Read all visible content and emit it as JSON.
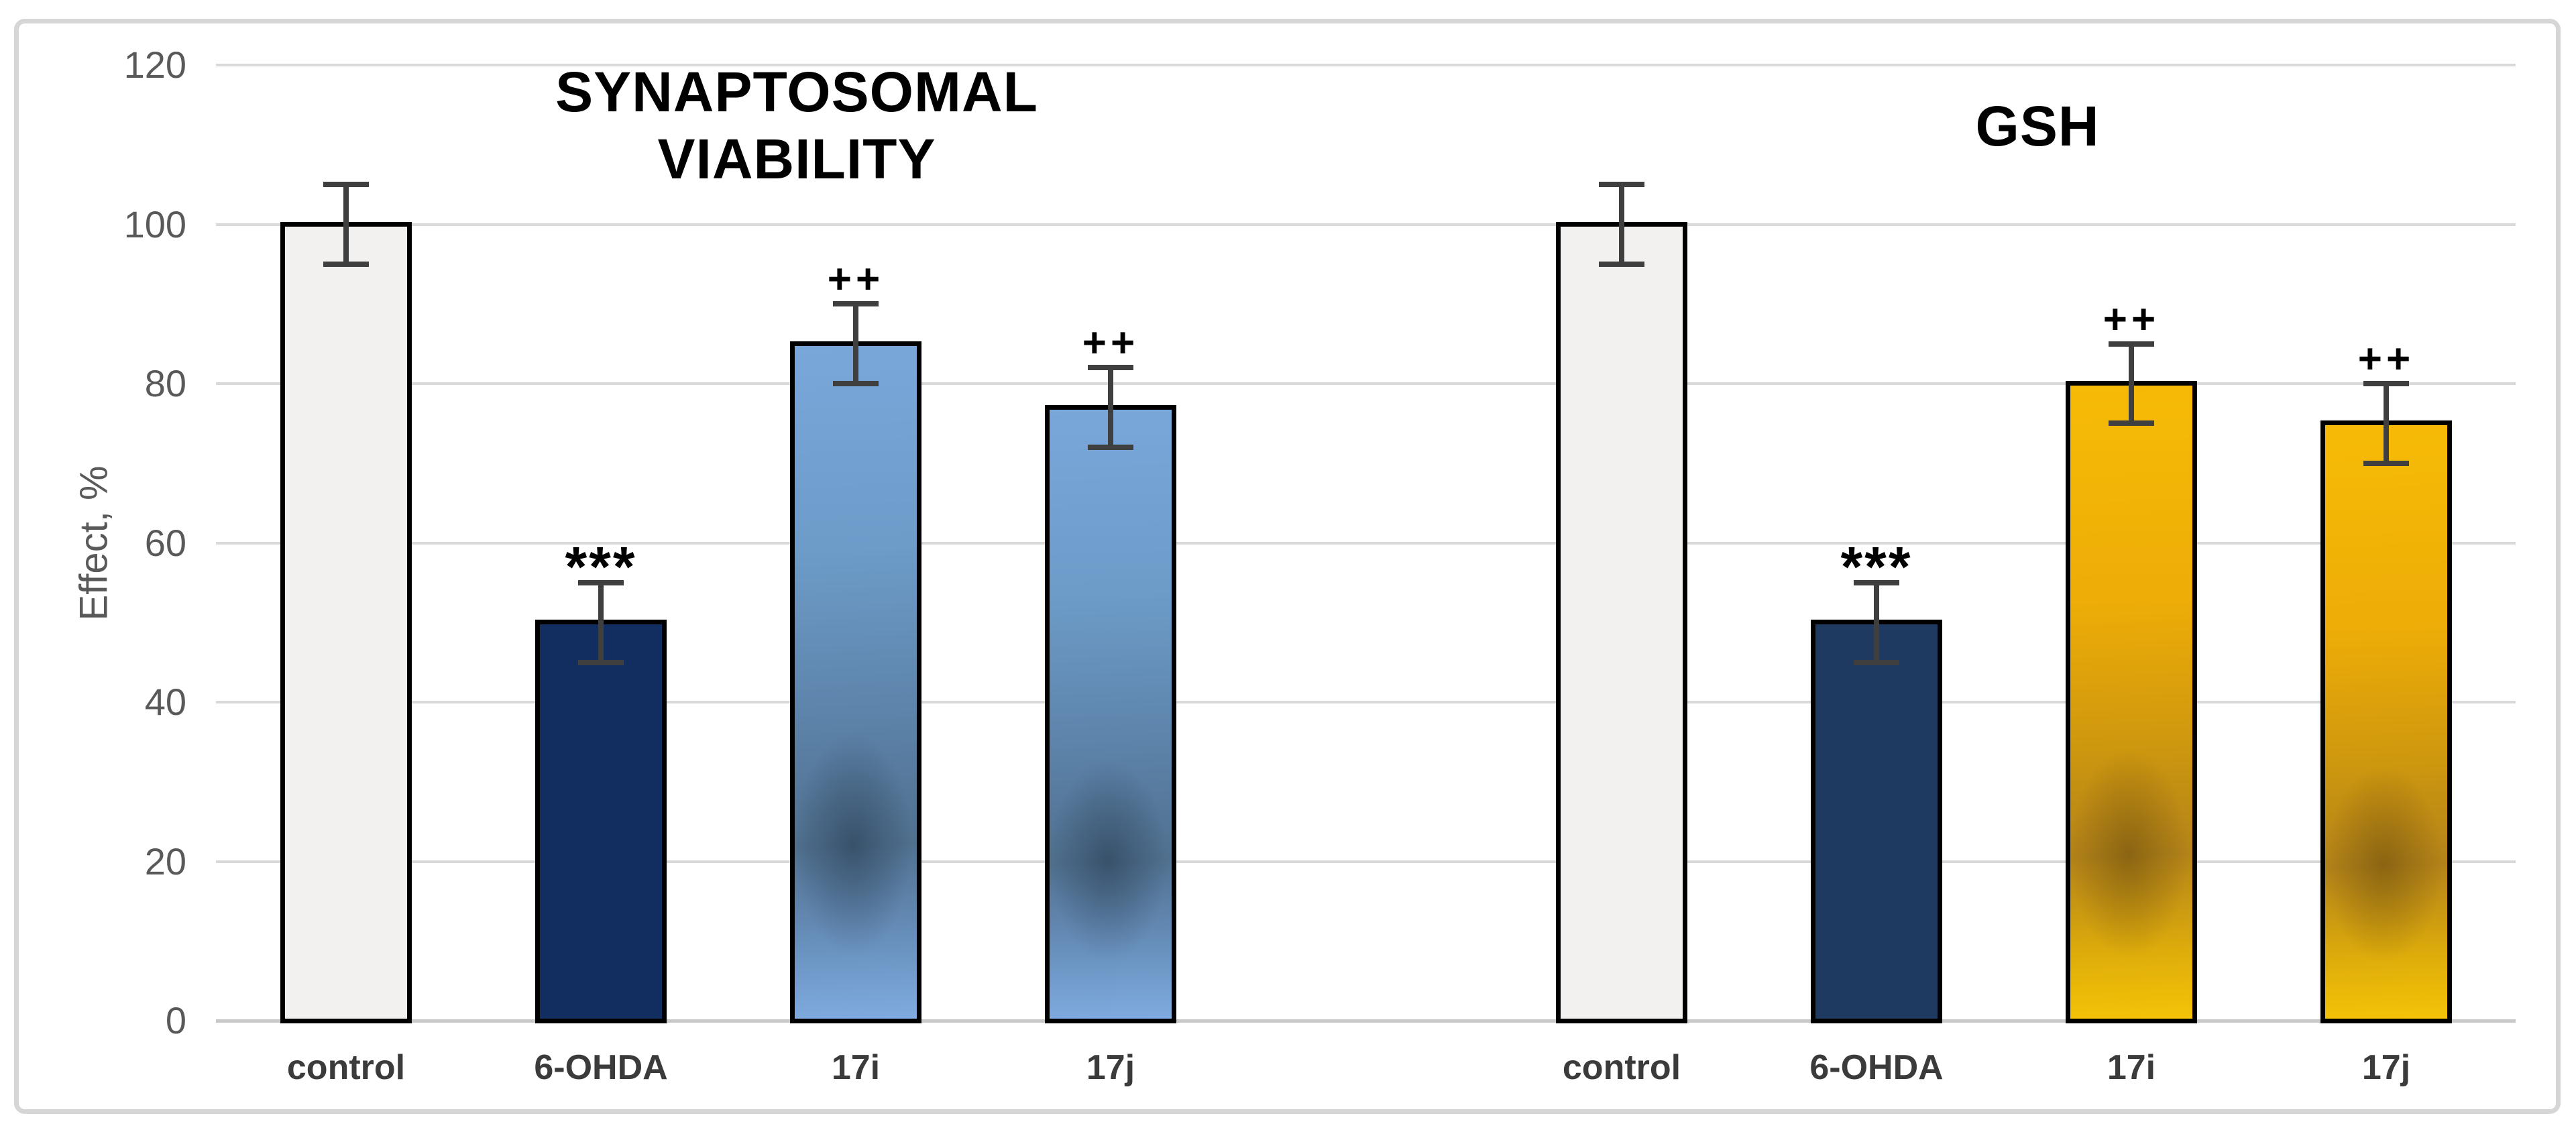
{
  "chart_data": {
    "type": "bar",
    "title": "",
    "categories": [
      "control",
      "6-OHDA",
      "17i",
      "17j"
    ],
    "xlabel": "",
    "ylabel": "Effect, %",
    "ylim": [
      0,
      120
    ],
    "yticks": [
      0,
      20,
      40,
      60,
      80,
      100,
      120
    ],
    "grid": true,
    "legend": "none",
    "panels": [
      {
        "title": "SYNAPTOSOMAL VIABILITY",
        "title_lines": [
          "SYNAPTOSOMAL",
          "VIABILITY"
        ],
        "series": [
          {
            "category": "control",
            "value": 100,
            "error": 5,
            "annotation": "",
            "fill": "light"
          },
          {
            "category": "6-OHDA",
            "value": 50,
            "error": 5,
            "annotation": "***",
            "fill": "navy"
          },
          {
            "category": "17i",
            "value": 85,
            "error": 5,
            "annotation": "++",
            "fill": "blue"
          },
          {
            "category": "17j",
            "value": 77,
            "error": 5,
            "annotation": "++",
            "fill": "blue"
          }
        ]
      },
      {
        "title": "GSH",
        "title_lines": [
          "GSH"
        ],
        "series": [
          {
            "category": "control",
            "value": 100,
            "error": 5,
            "annotation": "",
            "fill": "light"
          },
          {
            "category": "6-OHDA",
            "value": 50,
            "error": 5,
            "annotation": "***",
            "fill": "navy2"
          },
          {
            "category": "17i",
            "value": 80,
            "error": 5,
            "annotation": "++",
            "fill": "gold"
          },
          {
            "category": "17j",
            "value": 75,
            "error": 5,
            "annotation": "++",
            "fill": "gold"
          }
        ]
      }
    ],
    "colors": {
      "control_fill": "#f2f1f0",
      "navy_left": "#122e60",
      "navy_right": "#1e3a60",
      "blue_light": "#79a7da",
      "blue_dark": "#50708f",
      "gold_light": "#f6bb06",
      "gold_dark": "#b3831a",
      "bar_border": "#000000",
      "error_bar": "#3f3f3f",
      "gridline": "#d9d9d9",
      "tick_label": "#595959",
      "category_label": "#3b3b3b",
      "title_color": "#000000",
      "figure_border": "#d6d6d6"
    }
  }
}
